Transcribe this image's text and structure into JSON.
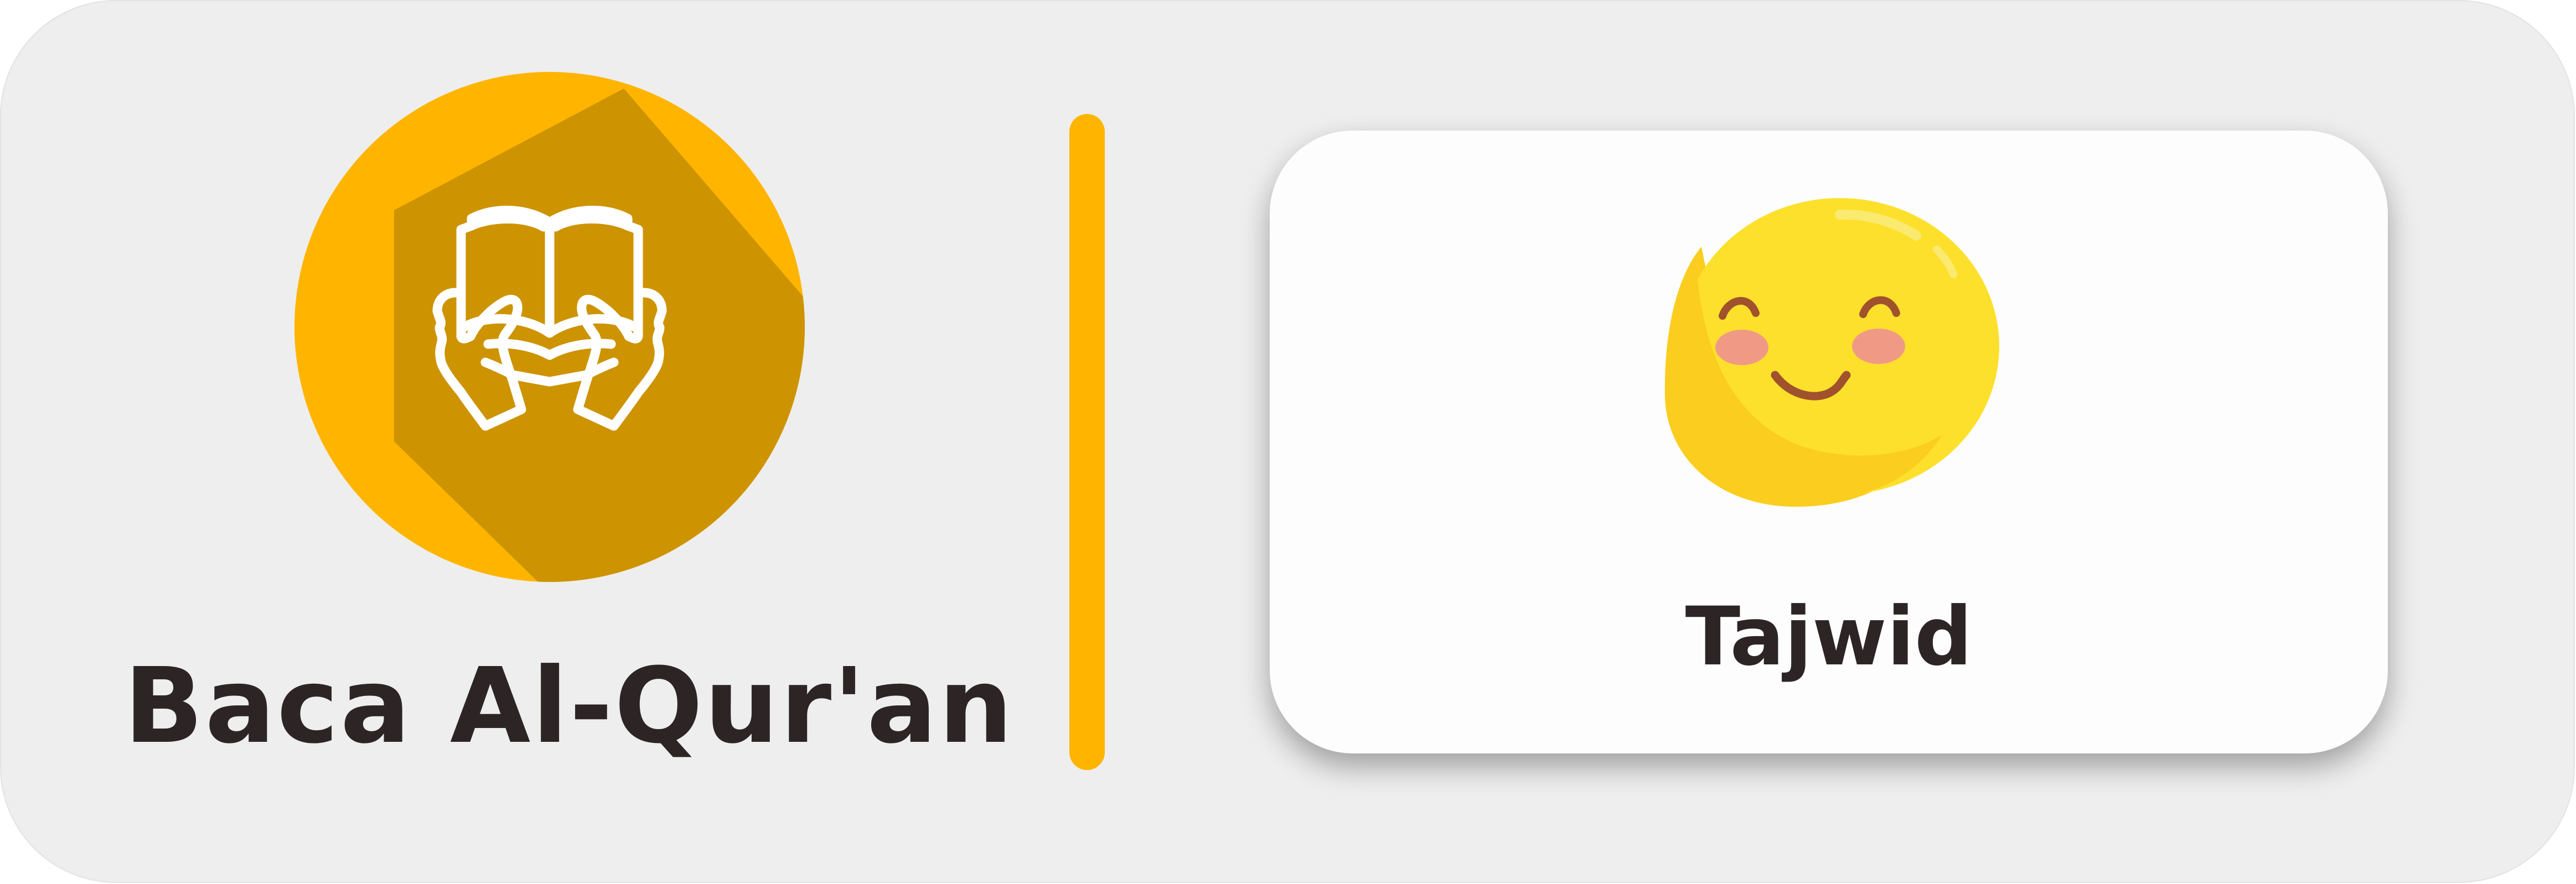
{
  "left_section": {
    "icon": "reading-quran-icon",
    "title": "Baca Al-Qur'an"
  },
  "divider": {
    "color": "#ffb500"
  },
  "card": {
    "icon": "smiling-face-icon",
    "label": "Tajwid"
  },
  "colors": {
    "accent": "#ffb500",
    "accent_shadow": "#cd9300",
    "panel_background": "#eeeeee",
    "card_background": "#fdfdfd",
    "text": "#2d2525",
    "emoji_yellow": "#fde02c",
    "emoji_shade": "#fbcd1e",
    "emoji_features": "#a0522d",
    "emoji_cheeks": "#f09a86"
  }
}
